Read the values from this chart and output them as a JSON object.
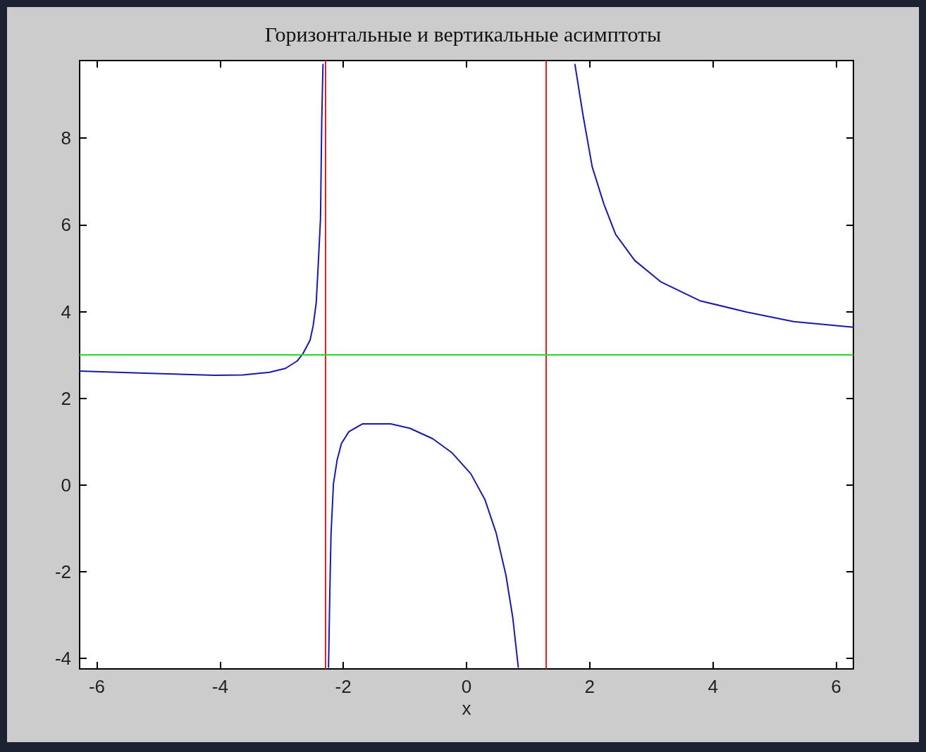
{
  "chart_data": {
    "type": "line",
    "title": "Горизонтальные и вертикальные асимптоты",
    "xlabel": "x",
    "xlim": [
      -6.28,
      6.28
    ],
    "xticks": [
      -6,
      -4,
      -2,
      0,
      2,
      4,
      6
    ],
    "ylim": [
      -4.24,
      9.79
    ],
    "yticks": [
      -4,
      -2,
      0,
      2,
      4,
      6,
      8
    ],
    "marker": "none",
    "line_style": "solid",
    "series": [
      {
        "color": "#1a1aa6",
        "x": [
          -6.28,
          -5.22,
          -4.08,
          -3.63,
          -3.2,
          -2.94,
          -2.75,
          -2.66,
          -2.54,
          -2.49,
          -2.44,
          -2.41,
          -2.37,
          -2.35,
          -2.33,
          -2.28,
          -2.24,
          -2.22,
          -2.2,
          -2.16,
          -2.1,
          -2.03,
          -1.91,
          -1.69,
          -1.23,
          -0.92,
          -0.55,
          -0.24,
          0.07,
          0.3,
          0.48,
          0.64,
          0.75,
          0.84,
          1.3,
          1.76,
          1.89,
          2.04,
          2.23,
          2.42,
          2.73,
          3.15,
          3.79,
          4.55,
          5.31,
          6.28
        ],
        "values": [
          2.63,
          2.58,
          2.53,
          2.54,
          2.6,
          2.69,
          2.86,
          3.02,
          3.34,
          3.67,
          4.2,
          5.0,
          6.15,
          8.4,
          9.7,
          null,
          -4.2,
          -2.56,
          -1.15,
          0.03,
          0.58,
          0.96,
          1.23,
          1.41,
          1.41,
          1.31,
          1.07,
          0.75,
          0.26,
          -0.34,
          -1.1,
          -2.08,
          -3.05,
          -4.2,
          null,
          9.7,
          8.54,
          7.34,
          6.48,
          5.78,
          5.18,
          4.69,
          4.25,
          3.99,
          3.77,
          3.64
        ]
      }
    ],
    "ref_lines": [
      {
        "axis": "x",
        "value": -2.29,
        "color": "#e02020"
      },
      {
        "axis": "x",
        "value": 1.29,
        "color": "#e02020"
      },
      {
        "axis": "y",
        "value": 3,
        "color": "#22dd22"
      }
    ]
  }
}
